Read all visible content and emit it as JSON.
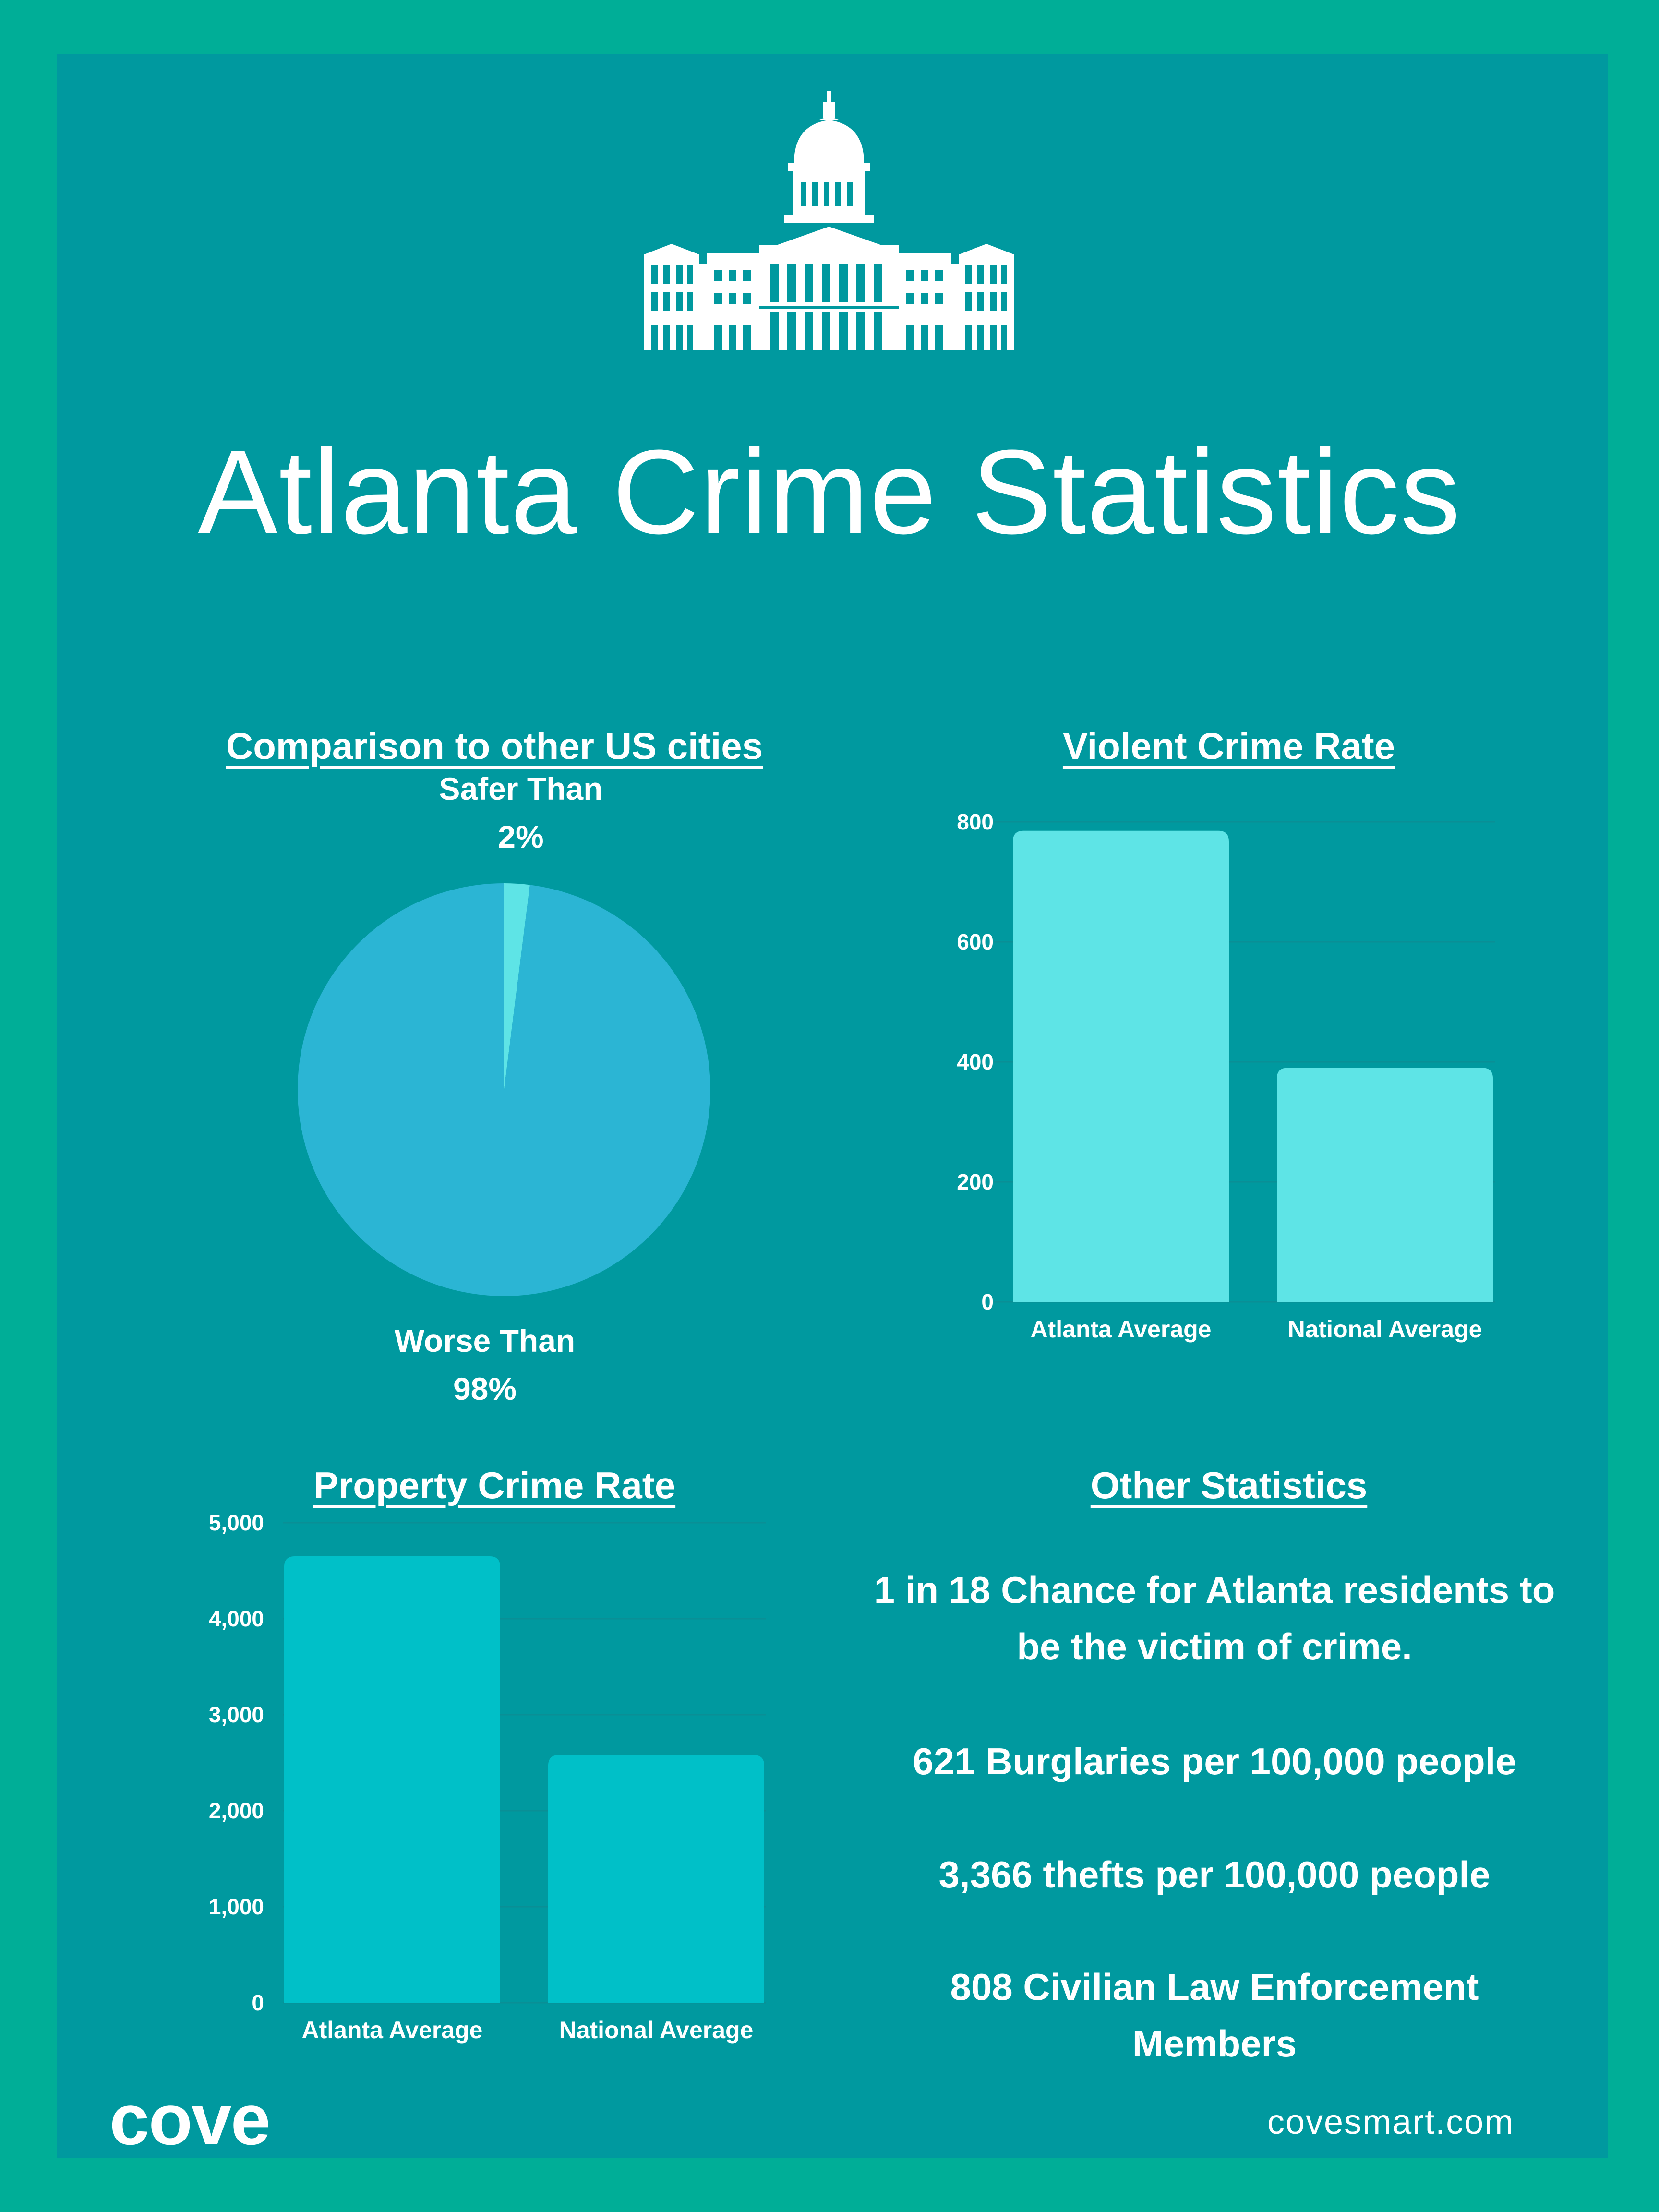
{
  "title": "Atlanta Crime Statistics",
  "comparison": {
    "heading": "Comparison to other US cities",
    "safer_label": "Safer Than",
    "safer_value": "2%",
    "worse_label": "Worse Than",
    "worse_value": "98%"
  },
  "violent": {
    "heading": "Violent Crime Rate"
  },
  "property": {
    "heading": "Property Crime Rate"
  },
  "other": {
    "heading": "Other Statistics",
    "stats": [
      "1 in 18 Chance for Atlanta residents to be the victim of crime.",
      "621 Burglaries per 100,000 people",
      "3,366 thefts per 100,000 people",
      "808 Civilian Law Enforcement Members"
    ]
  },
  "footer": {
    "logo": "cove",
    "site": "covesmart.com"
  },
  "colors": {
    "outer_bg": "#00ae97",
    "panel_bg": "#00999f",
    "pie_safer": "#5ee4e6",
    "pie_worse": "#2bb5d4",
    "violent_bar": "#5ee4e6",
    "property_bar": "#00c0c8"
  },
  "icons": {
    "header": "capitol-building-icon"
  },
  "chart_data": [
    {
      "type": "pie",
      "title": "Comparison to other US cities",
      "slices": [
        {
          "label": "Safer Than",
          "value": 2
        },
        {
          "label": "Worse Than",
          "value": 98
        }
      ]
    },
    {
      "type": "bar",
      "title": "Violent Crime Rate",
      "categories": [
        "Atlanta Average",
        "National Average"
      ],
      "values": [
        785,
        390
      ],
      "ylim": [
        0,
        800
      ],
      "yticks": [
        0,
        200,
        400,
        600,
        800
      ],
      "ytick_labels": [
        "0",
        "200",
        "400",
        "600",
        "800"
      ],
      "grid": true
    },
    {
      "type": "bar",
      "title": "Property Crime Rate",
      "categories": [
        "Atlanta Average",
        "National Average"
      ],
      "values": [
        4650,
        2580
      ],
      "ylim": [
        0,
        5000
      ],
      "yticks": [
        0,
        1000,
        2000,
        3000,
        4000,
        5000
      ],
      "ytick_labels": [
        "0",
        "1,000",
        "2,000",
        "3,000",
        "4,000",
        "5,000"
      ],
      "grid": true
    }
  ]
}
